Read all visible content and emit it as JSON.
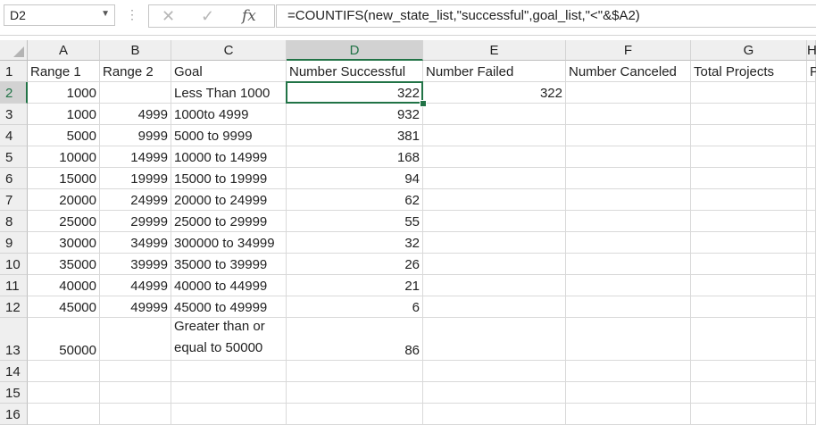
{
  "name_box": "D2",
  "formula_bar": {
    "cancel_symbol": "✕",
    "enter_symbol": "✓",
    "fx_symbol": "fx",
    "formula": "=COUNTIFS(new_state_list,\"successful\",goal_list,\"<\"&$A2)"
  },
  "columns": [
    "A",
    "B",
    "C",
    "D",
    "E",
    "F",
    "G",
    "H"
  ],
  "rows": [
    "1",
    "2",
    "3",
    "4",
    "5",
    "6",
    "7",
    "8",
    "9",
    "10",
    "11",
    "12",
    "13",
    "14",
    "15",
    "16"
  ],
  "selected_cell": "D2",
  "cells": {
    "A1": "Range 1",
    "B1": "Range 2",
    "C1": "Goal",
    "D1": "Number Successful",
    "E1": "Number Failed",
    "F1": "Number Canceled",
    "G1": "Total Projects",
    "H1": "P",
    "A2": "1000",
    "C2": "Less Than 1000",
    "D2": "322",
    "E2": "322",
    "A3": "1000",
    "B3": "4999",
    "C3": "1000to 4999",
    "D3": "932",
    "A4": "5000",
    "B4": "9999",
    "C4": "5000 to 9999",
    "D4": "381",
    "A5": "10000",
    "B5": "14999",
    "C5": "10000 to 14999",
    "D5": "168",
    "A6": "15000",
    "B6": "19999",
    "C6": "15000 to 19999",
    "D6": "94",
    "A7": "20000",
    "B7": "24999",
    "C7": "20000 to 24999",
    "D7": "62",
    "A8": "25000",
    "B8": "29999",
    "C8": "25000 to 29999",
    "D8": "55",
    "A9": "30000",
    "B9": "34999",
    "C9": "300000 to 34999",
    "D9": "32",
    "A10": "35000",
    "B10": "39999",
    "C10": "35000 to 39999",
    "D10": "26",
    "A11": "40000",
    "B11": "44999",
    "C11": "40000 to 44999",
    "D11": "21",
    "A12": "45000",
    "B12": "49999",
    "C12": "45000 to 49999",
    "D12": "6",
    "A13": "50000",
    "C13": "Greater than or equal to 50000",
    "D13": "86"
  }
}
